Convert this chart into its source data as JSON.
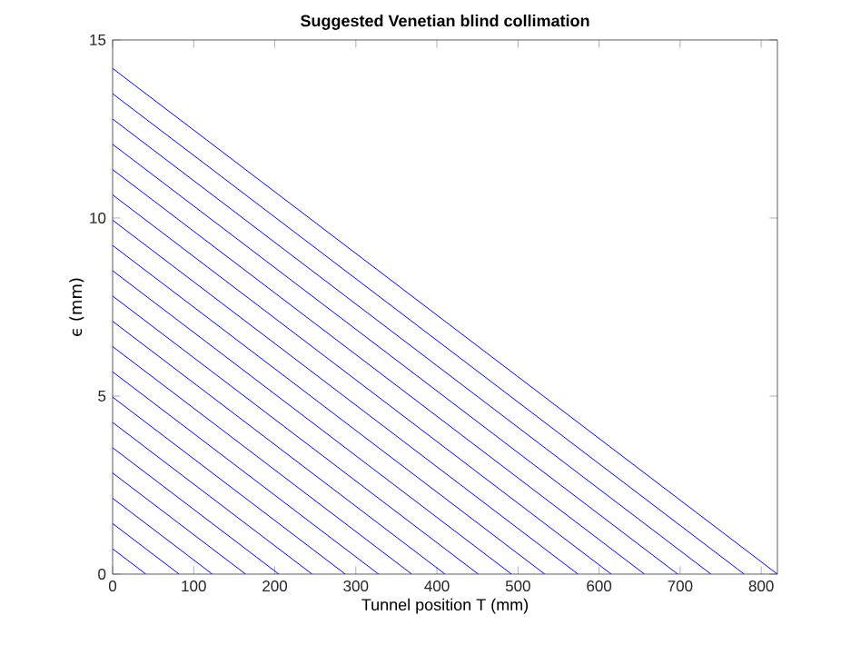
{
  "chart_data": {
    "type": "line",
    "title": "Suggested Venetian blind collimation",
    "xlabel": "Tunnel position T (mm)",
    "ylabel": "ϵ (mm)",
    "xlim": [
      0,
      820
    ],
    "ylim": [
      0,
      15
    ],
    "xticks": [
      0,
      100,
      200,
      300,
      400,
      500,
      600,
      700,
      800
    ],
    "yticks": [
      0,
      5,
      10,
      15
    ],
    "grid": false,
    "marker": "none",
    "line_style": "solid",
    "series": [
      {
        "color": "#0000ff",
        "x": [
          0,
          41
        ],
        "values": [
          0.71,
          0
        ]
      },
      {
        "color": "#0000ff",
        "x": [
          0,
          82
        ],
        "values": [
          1.42,
          0
        ]
      },
      {
        "color": "#0000ff",
        "x": [
          0,
          123
        ],
        "values": [
          2.13,
          0
        ]
      },
      {
        "color": "#0000ff",
        "x": [
          0,
          164
        ],
        "values": [
          2.84,
          0
        ]
      },
      {
        "color": "#0000ff",
        "x": [
          0,
          205
        ],
        "values": [
          3.55,
          0
        ]
      },
      {
        "color": "#0000ff",
        "x": [
          0,
          246
        ],
        "values": [
          4.26,
          0
        ]
      },
      {
        "color": "#0000ff",
        "x": [
          0,
          287
        ],
        "values": [
          4.97,
          0
        ]
      },
      {
        "color": "#0000ff",
        "x": [
          0,
          328
        ],
        "values": [
          5.68,
          0
        ]
      },
      {
        "color": "#0000ff",
        "x": [
          0,
          369
        ],
        "values": [
          6.39,
          0
        ]
      },
      {
        "color": "#0000ff",
        "x": [
          0,
          410
        ],
        "values": [
          7.1,
          0
        ]
      },
      {
        "color": "#0000ff",
        "x": [
          0,
          451
        ],
        "values": [
          7.81,
          0
        ]
      },
      {
        "color": "#0000ff",
        "x": [
          0,
          492
        ],
        "values": [
          8.52,
          0
        ]
      },
      {
        "color": "#0000ff",
        "x": [
          0,
          533
        ],
        "values": [
          9.23,
          0
        ]
      },
      {
        "color": "#0000ff",
        "x": [
          0,
          574
        ],
        "values": [
          9.94,
          0
        ]
      },
      {
        "color": "#0000ff",
        "x": [
          0,
          615
        ],
        "values": [
          10.65,
          0
        ]
      },
      {
        "color": "#0000ff",
        "x": [
          0,
          656
        ],
        "values": [
          11.36,
          0
        ]
      },
      {
        "color": "#0000ff",
        "x": [
          0,
          697
        ],
        "values": [
          12.07,
          0
        ]
      },
      {
        "color": "#0000ff",
        "x": [
          0,
          738
        ],
        "values": [
          12.78,
          0
        ]
      },
      {
        "color": "#0000ff",
        "x": [
          0,
          779
        ],
        "values": [
          13.49,
          0
        ]
      },
      {
        "color": "#0000ff",
        "x": [
          0,
          820
        ],
        "values": [
          14.2,
          0
        ]
      }
    ]
  }
}
